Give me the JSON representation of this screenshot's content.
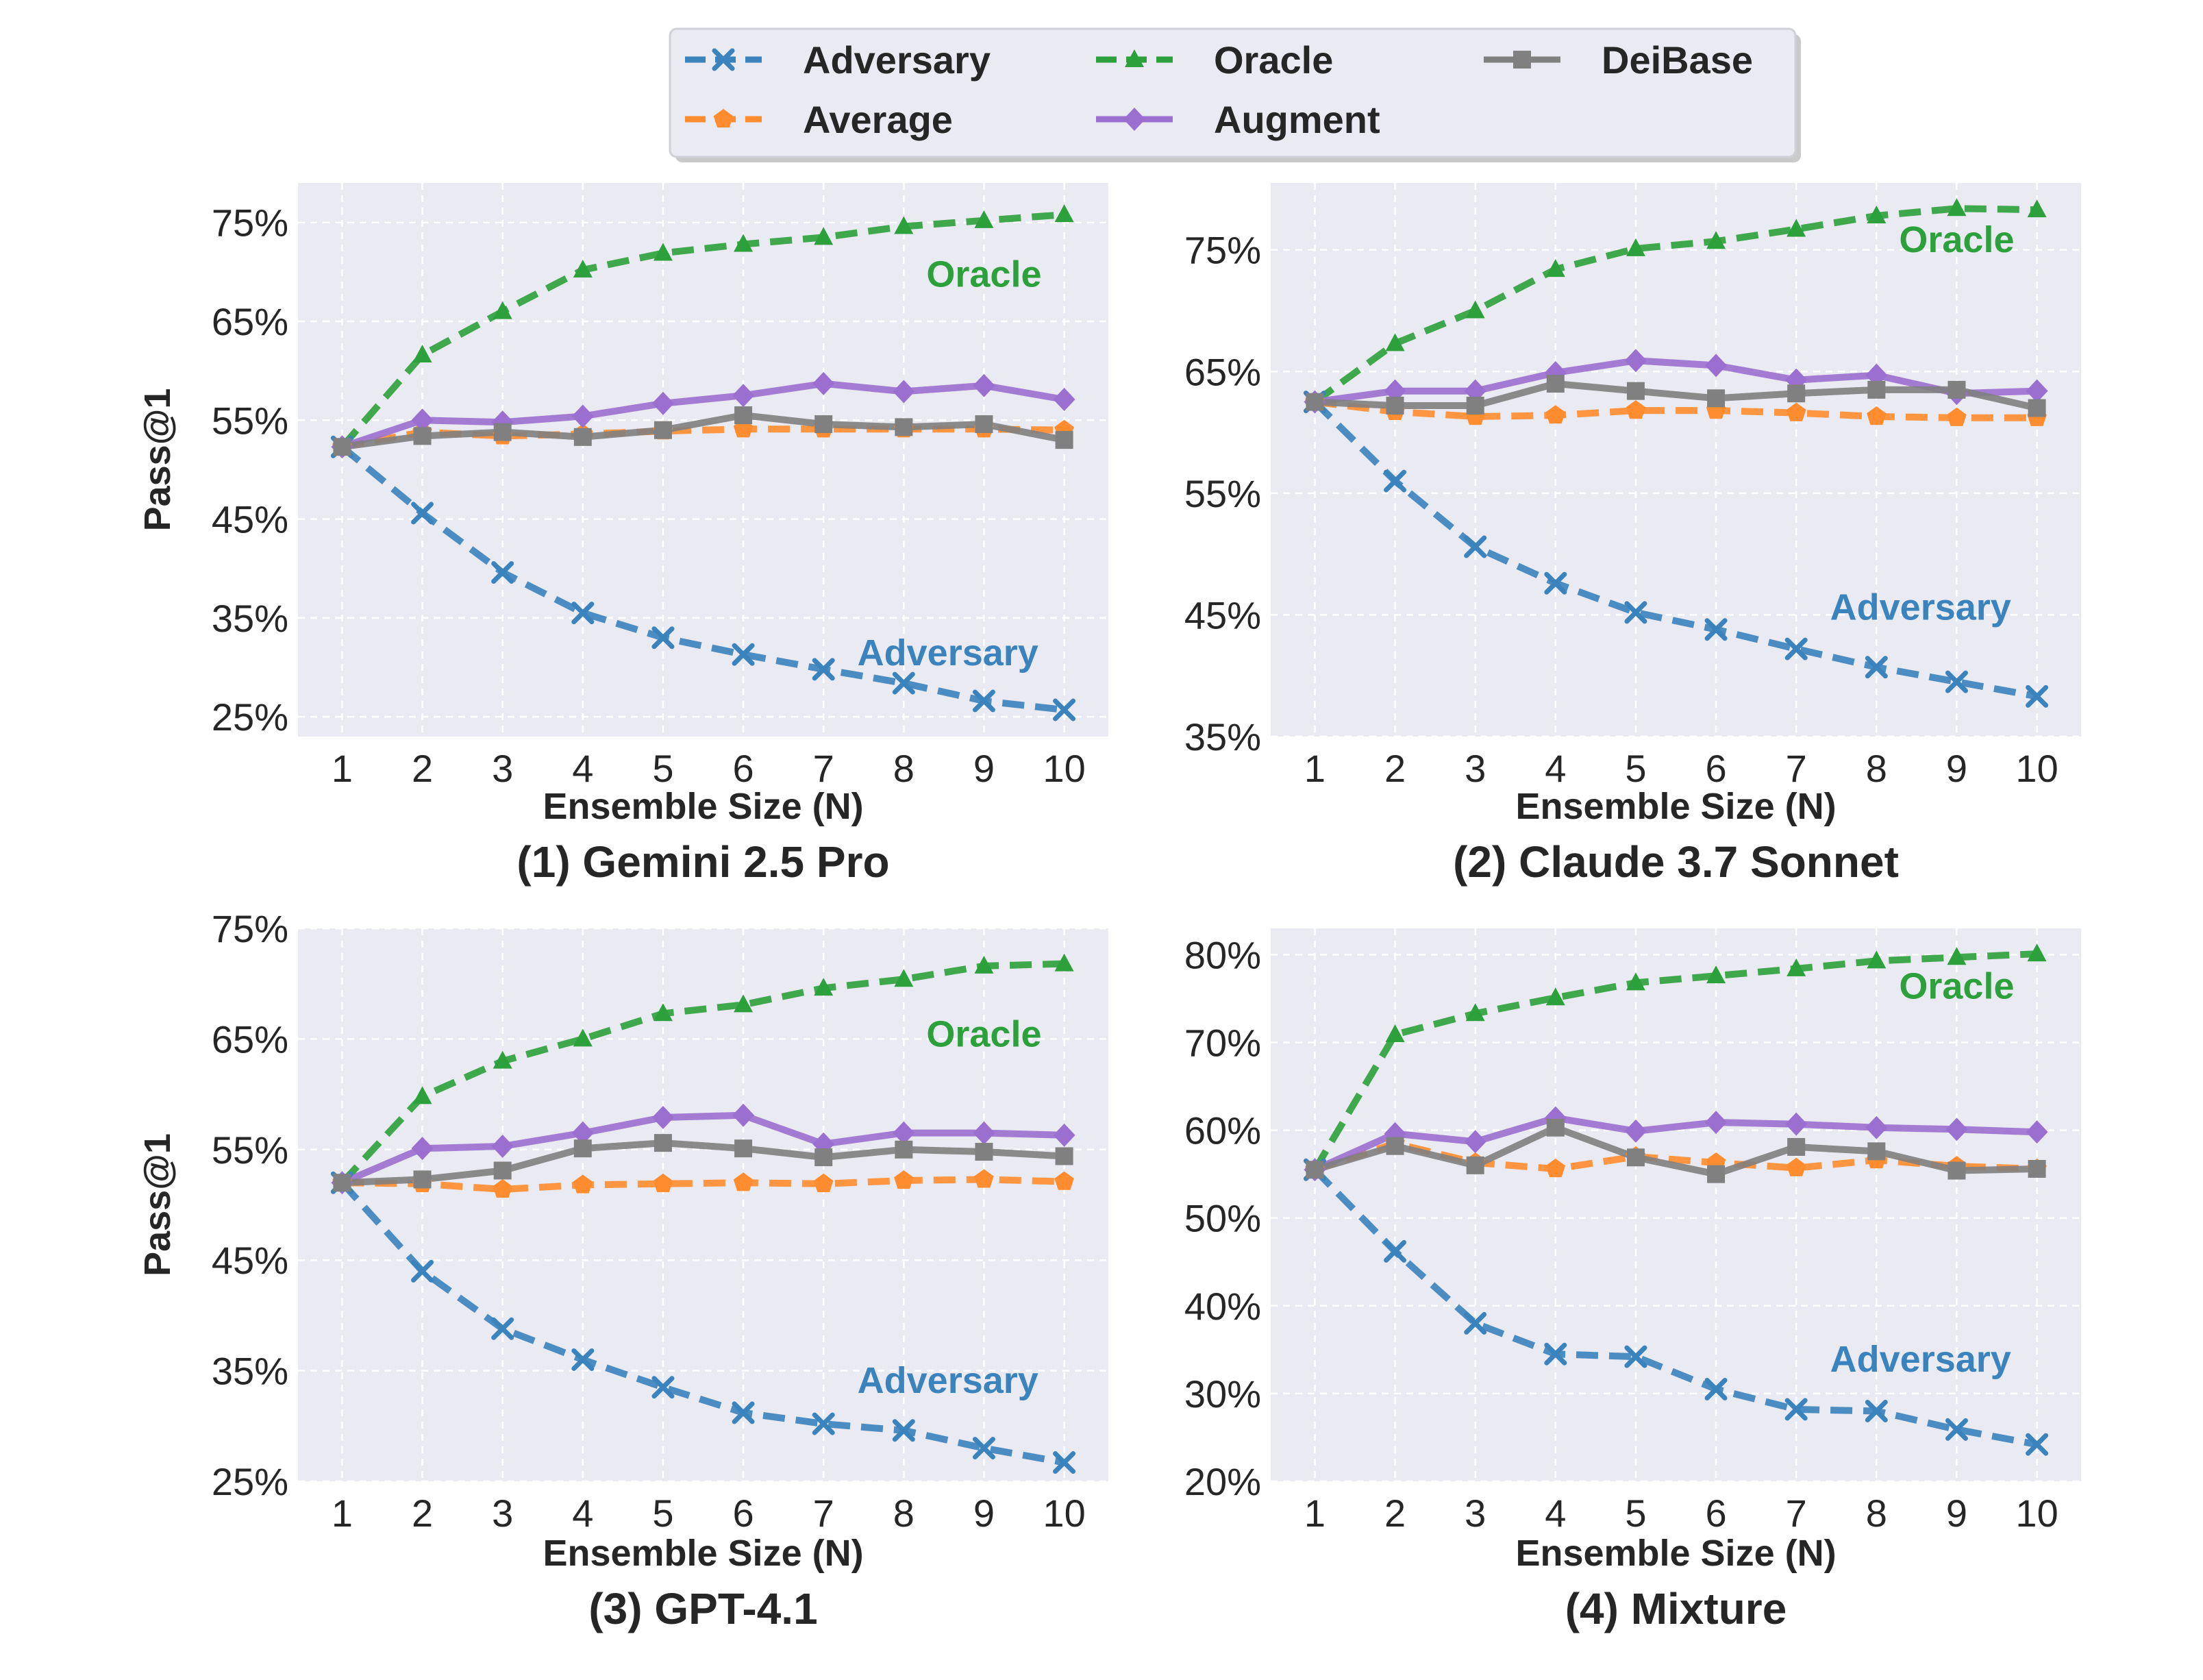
{
  "colors": {
    "Adversary": "#3a83bd",
    "Average": "#ff8c2e",
    "Oracle": "#2ca03a",
    "Augment": "#9b6fcf",
    "DeiBase": "#808080",
    "panel_bg": "#eaeaf2"
  },
  "legend": {
    "items": [
      {
        "name": "Adversary",
        "marker": "x",
        "dash": true
      },
      {
        "name": "Oracle",
        "marker": "triangle",
        "dash": true
      },
      {
        "name": "DeiBase",
        "marker": "square",
        "dash": false
      },
      {
        "name": "Average",
        "marker": "pentagon",
        "dash": true
      },
      {
        "name": "Augment",
        "marker": "diamond",
        "dash": false
      }
    ]
  },
  "chart_data": [
    {
      "type": "line",
      "title": "(1) Gemini 2.5 Pro",
      "xlabel": "Ensemble Size (N)",
      "ylabel": "Pass@1",
      "x": [
        1,
        2,
        3,
        4,
        5,
        6,
        7,
        8,
        9,
        10
      ],
      "ylim": [
        23,
        79
      ],
      "yticks": [
        25,
        35,
        45,
        55,
        65,
        75
      ],
      "ytick_labels": [
        "25%",
        "35%",
        "45%",
        "55%",
        "65%",
        "75%"
      ],
      "series": [
        {
          "name": "Adversary",
          "values": [
            52.3,
            45.6,
            39.6,
            35.5,
            33.0,
            31.3,
            29.8,
            28.4,
            26.6,
            25.7
          ]
        },
        {
          "name": "Average",
          "values": [
            52.3,
            53.8,
            53.4,
            53.6,
            53.9,
            54.1,
            54.1,
            54.1,
            54.1,
            54.0
          ]
        },
        {
          "name": "Oracle",
          "values": [
            52.3,
            61.6,
            66.0,
            70.2,
            71.9,
            72.8,
            73.5,
            74.6,
            75.2,
            75.8
          ]
        },
        {
          "name": "Augment",
          "values": [
            52.3,
            55.0,
            54.8,
            55.4,
            56.7,
            57.5,
            58.7,
            57.9,
            58.5,
            57.1
          ]
        },
        {
          "name": "DeiBase",
          "values": [
            52.3,
            53.4,
            53.8,
            53.3,
            54.0,
            55.5,
            54.6,
            54.3,
            54.6,
            53.0
          ]
        }
      ],
      "annotations": [
        {
          "text": "Oracle",
          "color_key": "Oracle",
          "x": 9.0,
          "y": 68.5
        },
        {
          "text": "Adversary",
          "color_key": "Adversary",
          "x": 8.55,
          "y": 30.2
        }
      ]
    },
    {
      "type": "line",
      "title": "(2) Claude 3.7 Sonnet",
      "xlabel": "Ensemble Size (N)",
      "ylabel": "",
      "x": [
        1,
        2,
        3,
        4,
        5,
        6,
        7,
        8,
        9,
        10
      ],
      "ylim": [
        35,
        80.5
      ],
      "yticks": [
        35,
        45,
        55,
        65,
        75
      ],
      "ytick_labels": [
        "35%",
        "45%",
        "55%",
        "65%",
        "75%"
      ],
      "series": [
        {
          "name": "Adversary",
          "values": [
            62.5,
            56.0,
            50.6,
            47.6,
            45.2,
            43.8,
            42.2,
            40.7,
            39.5,
            38.3
          ]
        },
        {
          "name": "Average",
          "values": [
            62.5,
            61.7,
            61.3,
            61.4,
            61.8,
            61.8,
            61.6,
            61.3,
            61.2,
            61.2
          ]
        },
        {
          "name": "Oracle",
          "values": [
            62.5,
            67.3,
            70.0,
            73.4,
            75.1,
            75.7,
            76.7,
            77.8,
            78.4,
            78.3
          ]
        },
        {
          "name": "Augment",
          "values": [
            62.5,
            63.4,
            63.4,
            64.9,
            65.9,
            65.5,
            64.3,
            64.7,
            63.2,
            63.4
          ]
        },
        {
          "name": "DeiBase",
          "values": [
            62.5,
            62.2,
            62.2,
            64.0,
            63.4,
            62.8,
            63.2,
            63.5,
            63.5,
            62.0
          ]
        }
      ],
      "annotations": [
        {
          "text": "Oracle",
          "color_key": "Oracle",
          "x": 9.0,
          "y": 74.8
        },
        {
          "text": "Adversary",
          "color_key": "Adversary",
          "x": 8.55,
          "y": 44.6
        }
      ]
    },
    {
      "type": "line",
      "title": "(3) GPT-4.1",
      "xlabel": "Ensemble Size (N)",
      "ylabel": "Pass@1",
      "x": [
        1,
        2,
        3,
        4,
        5,
        6,
        7,
        8,
        9,
        10
      ],
      "ylim": [
        25,
        75
      ],
      "yticks": [
        25,
        35,
        45,
        55,
        65,
        75
      ],
      "ytick_labels": [
        "25%",
        "35%",
        "45%",
        "55%",
        "65%",
        "75%"
      ],
      "series": [
        {
          "name": "Adversary",
          "values": [
            52.0,
            44.0,
            38.8,
            36.0,
            33.5,
            31.2,
            30.2,
            29.6,
            28.0,
            26.7
          ]
        },
        {
          "name": "Average",
          "values": [
            52.0,
            51.9,
            51.4,
            51.8,
            51.9,
            52.0,
            51.9,
            52.2,
            52.3,
            52.1
          ]
        },
        {
          "name": "Oracle",
          "values": [
            52.0,
            59.8,
            63.0,
            65.0,
            67.3,
            68.1,
            69.6,
            70.4,
            71.6,
            71.8
          ]
        },
        {
          "name": "Augment",
          "values": [
            52.0,
            55.1,
            55.3,
            56.5,
            57.9,
            58.1,
            55.5,
            56.5,
            56.5,
            56.3
          ]
        },
        {
          "name": "DeiBase",
          "values": [
            52.0,
            52.3,
            53.1,
            55.1,
            55.6,
            55.1,
            54.3,
            55.0,
            54.8,
            54.4
          ]
        }
      ],
      "annotations": [
        {
          "text": "Oracle",
          "color_key": "Oracle",
          "x": 9.0,
          "y": 64.3
        },
        {
          "text": "Adversary",
          "color_key": "Adversary",
          "x": 8.55,
          "y": 33.0
        }
      ]
    },
    {
      "type": "line",
      "title": "(4) Mixture",
      "xlabel": "Ensemble Size (N)",
      "ylabel": "",
      "x": [
        1,
        2,
        3,
        4,
        5,
        6,
        7,
        8,
        9,
        10
      ],
      "ylim": [
        20,
        83
      ],
      "yticks": [
        20,
        30,
        40,
        50,
        60,
        70,
        80
      ],
      "ytick_labels": [
        "20%",
        "30%",
        "40%",
        "50%",
        "60%",
        "70%",
        "80%"
      ],
      "series": [
        {
          "name": "Adversary",
          "values": [
            55.5,
            46.2,
            38.0,
            34.5,
            34.2,
            30.5,
            28.2,
            28.0,
            25.9,
            24.2
          ]
        },
        {
          "name": "Average",
          "values": [
            55.5,
            58.5,
            56.3,
            55.6,
            57.0,
            56.3,
            55.7,
            56.6,
            55.9,
            55.6
          ]
        },
        {
          "name": "Oracle",
          "values": [
            55.5,
            70.9,
            73.3,
            75.1,
            76.8,
            77.6,
            78.4,
            79.3,
            79.7,
            80.1
          ]
        },
        {
          "name": "Augment",
          "values": [
            55.5,
            59.6,
            58.7,
            61.4,
            59.9,
            60.9,
            60.7,
            60.3,
            60.1,
            59.8
          ]
        },
        {
          "name": "DeiBase",
          "values": [
            55.5,
            58.2,
            56.0,
            60.3,
            56.9,
            55.0,
            58.1,
            57.6,
            55.4,
            55.6
          ]
        }
      ],
      "annotations": [
        {
          "text": "Oracle",
          "color_key": "Oracle",
          "x": 9.0,
          "y": 75.0
        },
        {
          "text": "Adversary",
          "color_key": "Adversary",
          "x": 8.55,
          "y": 32.5
        }
      ]
    }
  ]
}
